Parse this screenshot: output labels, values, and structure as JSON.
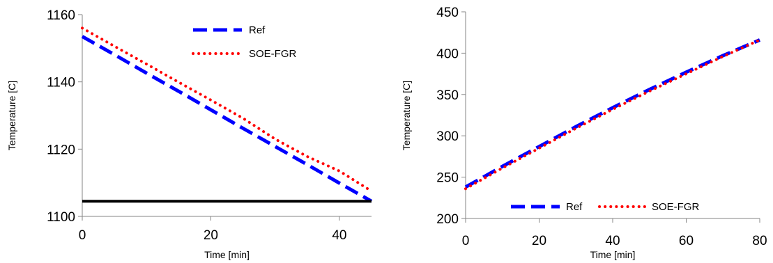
{
  "chart_data": [
    {
      "type": "line",
      "xlabel": "Time [min]",
      "ylabel": "Temperature [C]",
      "xlim": [
        0,
        45
      ],
      "ylim": [
        1100,
        1160
      ],
      "xticks": [
        0,
        20,
        40
      ],
      "yticks": [
        1100,
        1120,
        1140,
        1160
      ],
      "grid": false,
      "legend": "top-right",
      "series": [
        {
          "name": "Ref",
          "color": "#0000ff",
          "style": "dashed",
          "x": [
            0,
            5,
            10,
            15,
            20,
            25,
            30,
            35,
            40,
            45
          ],
          "y": [
            1153.5,
            1148.1,
            1142.6,
            1137.2,
            1131.7,
            1126.2,
            1120.8,
            1115.4,
            1109.9,
            1104.5
          ]
        },
        {
          "name": "SOE-FGR",
          "color": "#ff0000",
          "style": "dotted",
          "x": [
            0,
            5,
            10,
            15,
            20,
            25,
            30,
            35,
            40,
            45
          ],
          "y": [
            1156.0,
            1150.6,
            1145.3,
            1139.9,
            1134.6,
            1129.2,
            1123.0,
            1117.8,
            1113.5,
            1107.5
          ]
        },
        {
          "name": "",
          "color": "#000000",
          "style": "solid",
          "x": [
            0,
            45
          ],
          "y": [
            1104.5,
            1104.5
          ]
        }
      ]
    },
    {
      "type": "line",
      "xlabel": "Time [min]",
      "ylabel": "Temperature [C]",
      "xlim": [
        0,
        80
      ],
      "ylim": [
        200,
        450
      ],
      "xticks": [
        0,
        20,
        40,
        60,
        80
      ],
      "yticks": [
        200,
        250,
        300,
        350,
        400,
        450
      ],
      "grid": false,
      "legend": "bottom",
      "series": [
        {
          "name": "Ref",
          "color": "#0000ff",
          "style": "dashed",
          "x": [
            0,
            10,
            20,
            30,
            40,
            50,
            60,
            70,
            80
          ],
          "y": [
            238,
            263,
            287,
            311,
            334,
            356,
            377,
            397,
            416
          ]
        },
        {
          "name": "SOE-FGR",
          "color": "#ff0000",
          "style": "dotted",
          "x": [
            0,
            10,
            20,
            30,
            40,
            50,
            60,
            70,
            80
          ],
          "y": [
            236,
            261,
            285,
            309,
            332,
            354,
            375,
            396,
            416
          ]
        }
      ]
    }
  ]
}
